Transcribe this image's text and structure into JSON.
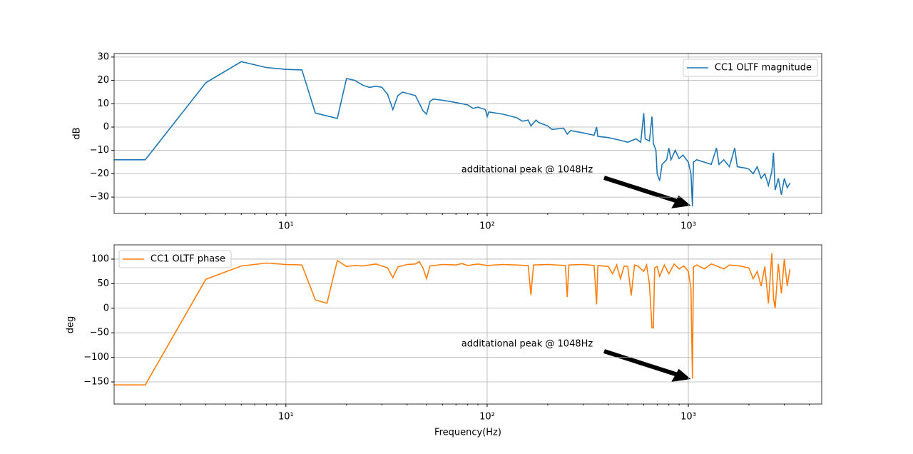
{
  "chart_data": [
    {
      "type": "line",
      "ylabel": "dB",
      "xlog": true,
      "grid": true,
      "legend": "upper right",
      "annotation": "additational peak @ 1048Hz",
      "xlim": [
        1.4,
        4600
      ],
      "ylim": [
        -37,
        31.5
      ],
      "xticks": [
        {
          "value": 10,
          "label": "10¹"
        },
        {
          "value": 100,
          "label": "10²"
        },
        {
          "value": 1000,
          "label": "10³"
        }
      ],
      "yticks": [
        {
          "value": -30,
          "label": "−30"
        },
        {
          "value": -20,
          "label": "−20"
        },
        {
          "value": -10,
          "label": "−10"
        },
        0,
        10,
        20,
        30
      ],
      "x": [
        1.4,
        2,
        4,
        6,
        8,
        10,
        12,
        14,
        18,
        20,
        22,
        24,
        26,
        28,
        30,
        32,
        34,
        36,
        38,
        44,
        48,
        50,
        52,
        54,
        60,
        70,
        80,
        85,
        90,
        98,
        100,
        102,
        120,
        140,
        150,
        160,
        165,
        175,
        180,
        200,
        210,
        240,
        250,
        260,
        300,
        340,
        350,
        355,
        400,
        450,
        500,
        550,
        580,
        600,
        610,
        640,
        660,
        670,
        690,
        700,
        720,
        740,
        780,
        800,
        820,
        860,
        900,
        940,
        1000,
        1030,
        1048,
        1060,
        1100,
        1200,
        1300,
        1380,
        1420,
        1500,
        1600,
        1700,
        1750,
        1900,
        2000,
        2100,
        2200,
        2300,
        2400,
        2500,
        2600,
        2650,
        2700,
        2800,
        2900,
        3000,
        3100,
        3200
      ],
      "series": [
        {
          "name": "CC1 OLTF magnitude",
          "color": "#1f77b4",
          "values": [
            -14,
            -14,
            19,
            28,
            25.5,
            24.7,
            24.5,
            6,
            3.7,
            20.8,
            20,
            18,
            17,
            17.5,
            17,
            14,
            7.5,
            13.5,
            15,
            13.5,
            7,
            5.5,
            11,
            12,
            11.5,
            10.5,
            9.5,
            8,
            8.5,
            7.5,
            4.5,
            6.5,
            5.5,
            4,
            2.5,
            3,
            0.5,
            3,
            2,
            0.5,
            -1,
            -0.5,
            -3,
            -1.5,
            -2.5,
            -3.5,
            0,
            -4,
            -4.5,
            -5.5,
            -6.5,
            -5,
            -6.5,
            6,
            -5,
            -6,
            4.5,
            -7,
            -10,
            -20,
            -23,
            -16,
            -14,
            -9,
            -14,
            -10,
            -13.5,
            -12,
            -15,
            -20,
            -34,
            -15,
            -14,
            -15,
            -16,
            -9,
            -16,
            -14,
            -17,
            -9,
            -17,
            -17.5,
            -18,
            -20,
            -17,
            -22,
            -20,
            -25,
            -19,
            -11,
            -27,
            -22,
            -29,
            -22,
            -26,
            -24
          ]
        }
      ]
    },
    {
      "type": "line",
      "ylabel": "deg",
      "xlabel": "Frequency(Hz)",
      "xlog": true,
      "grid": true,
      "legend": "upper left",
      "annotation": "additational peak @ 1048Hz",
      "xlim": [
        1.4,
        4600
      ],
      "ylim": [
        -195,
        129
      ],
      "xticks": [
        {
          "value": 10,
          "label": "10¹"
        },
        {
          "value": 100,
          "label": "10²"
        },
        {
          "value": 1000,
          "label": "10³"
        }
      ],
      "yticks": [
        {
          "value": -150,
          "label": "−150"
        },
        {
          "value": -100,
          "label": "−100"
        },
        {
          "value": -50,
          "label": "−50"
        },
        0,
        50,
        100
      ],
      "x": [
        1.4,
        2,
        4,
        6,
        8,
        10,
        12,
        14,
        16,
        18,
        20,
        22,
        24,
        28,
        32,
        34,
        36,
        40,
        44,
        46,
        48,
        50,
        52,
        60,
        70,
        75,
        80,
        90,
        100,
        120,
        140,
        155,
        160,
        165,
        170,
        200,
        245,
        250,
        255,
        300,
        340,
        350,
        355,
        400,
        420,
        440,
        460,
        480,
        500,
        520,
        540,
        560,
        600,
        620,
        640,
        660,
        670,
        680,
        700,
        720,
        760,
        800,
        850,
        900,
        950,
        1000,
        1030,
        1048,
        1060,
        1100,
        1200,
        1300,
        1400,
        1500,
        1600,
        1800,
        2000,
        2100,
        2200,
        2300,
        2400,
        2500,
        2600,
        2650,
        2700,
        2800,
        2900,
        3000,
        3100,
        3200
      ],
      "series": [
        {
          "name": "CC1 OLTF phase",
          "color": "#ff7f0e",
          "values": [
            -156,
            -156,
            59,
            86,
            92,
            89,
            88,
            17,
            10,
            97,
            85,
            87,
            86,
            90,
            82,
            62,
            84,
            89,
            90,
            95,
            82,
            60,
            86,
            89,
            88,
            91,
            87,
            90,
            87,
            89,
            88,
            87,
            87,
            27,
            88,
            89,
            87,
            23,
            88,
            89,
            87,
            8,
            87,
            85,
            70,
            88,
            60,
            86,
            85,
            26,
            88,
            86,
            75,
            88,
            50,
            -40,
            -40,
            82,
            85,
            65,
            88,
            70,
            90,
            80,
            86,
            75,
            40,
            -143,
            84,
            88,
            80,
            90,
            85,
            80,
            88,
            86,
            82,
            60,
            75,
            45,
            85,
            10,
            112,
            20,
            0,
            90,
            30,
            100,
            45,
            80
          ]
        }
      ]
    }
  ]
}
